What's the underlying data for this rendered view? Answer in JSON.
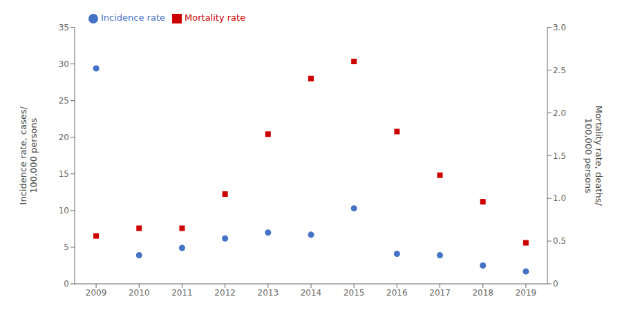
{
  "chart_data": {
    "type": "scatter",
    "x": [
      2009,
      2010,
      2011,
      2012,
      2013,
      2014,
      2015,
      2016,
      2017,
      2018,
      2019
    ],
    "xlim": [
      2008.5,
      2019.5
    ],
    "xticks": [
      2009,
      2010,
      2011,
      2012,
      2013,
      2014,
      2015,
      2016,
      2017,
      2018,
      2019
    ],
    "ylim": [
      0,
      35
    ],
    "yticks": [
      0,
      5,
      10,
      15,
      20,
      25,
      30,
      35
    ],
    "y2lim": [
      0,
      3.0
    ],
    "y2ticks": [
      0,
      0.5,
      {
        "value": 1.0,
        "label": "1.0"
      },
      1.5,
      {
        "value": 2.0,
        "label": "2.0"
      },
      2.5,
      {
        "value": 3.0,
        "label": "3.0"
      }
    ],
    "ylabel": "Incidence rate, cases/\n100,000 persons",
    "y2label": "Mortality rate, deaths/\n100,000 persons",
    "series": [
      {
        "name": "Incidence rate",
        "color": "#4472c4",
        "marker": "circle",
        "values": [
          29.4,
          3.9,
          4.9,
          6.2,
          7.0,
          6.7,
          10.3,
          4.1,
          3.9,
          2.5,
          1.7
        ]
      },
      {
        "name": "Mortality rate",
        "color": "#cc0000",
        "marker": "square",
        "axis": "y2",
        "values": [
          0.56,
          0.65,
          0.65,
          1.05,
          1.75,
          2.4,
          2.6,
          1.78,
          1.27,
          0.96,
          0.48
        ]
      }
    ],
    "legend": "upper left",
    "grid": false
  }
}
